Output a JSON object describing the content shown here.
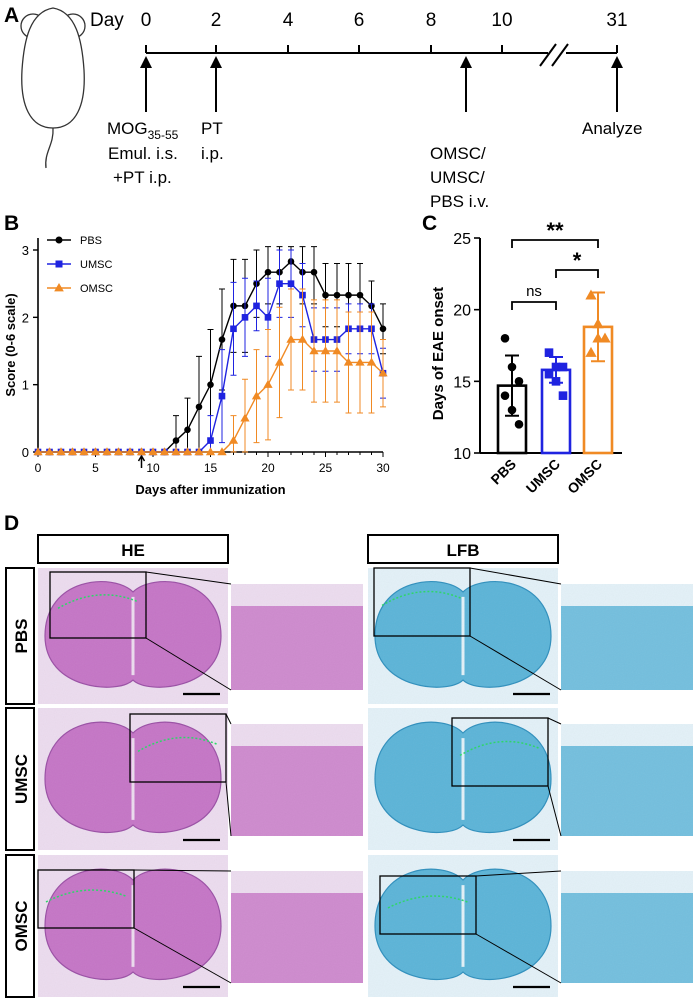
{
  "panel_labels": {
    "a": "A",
    "b": "B",
    "c": "C",
    "d": "D"
  },
  "timeline": {
    "day_label": "Day",
    "days": [
      "0",
      "2",
      "4",
      "6",
      "8",
      "10",
      "31"
    ],
    "events": {
      "mog_prefix": "MOG",
      "mog_subscript": "35-55",
      "mog_line2": "Emul. i.s.",
      "mog_line3": "+PT i.p.",
      "pt_line1": "PT",
      "pt_line2": "i.p.",
      "omsc_line1": "OMSC/",
      "omsc_line2": "UMSC/",
      "omsc_line3": "PBS i.v.",
      "analyze": "Analyze"
    }
  },
  "chart_data": [
    {
      "type": "line",
      "title": "",
      "xlabel": "Days after immunization",
      "ylabel": "Score (0-6 scale)",
      "xlim": [
        0,
        30
      ],
      "ylim": [
        0,
        3
      ],
      "x_ticks": [
        "0",
        "5",
        "10",
        "15",
        "20",
        "25",
        "30"
      ],
      "y_ticks": [
        "0",
        "1",
        "2",
        "3"
      ],
      "x": [
        0,
        1,
        2,
        3,
        4,
        5,
        6,
        7,
        8,
        9,
        10,
        11,
        12,
        13,
        14,
        15,
        16,
        17,
        18,
        19,
        20,
        21,
        22,
        23,
        24,
        25,
        26,
        27,
        28,
        29,
        30
      ],
      "arrow_day": 9,
      "series": [
        {
          "name": "PBS",
          "color": "#000000",
          "marker": "circle",
          "values": [
            0,
            0,
            0,
            0,
            0,
            0,
            0,
            0,
            0,
            0,
            0,
            0,
            0.17,
            0.33,
            0.67,
            1.0,
            1.67,
            2.17,
            2.17,
            2.5,
            2.67,
            2.67,
            2.83,
            2.67,
            2.67,
            2.33,
            2.33,
            2.33,
            2.33,
            2.17,
            1.83
          ],
          "errors": [
            0,
            0,
            0,
            0,
            0,
            0,
            0,
            0,
            0,
            0,
            0,
            0,
            0.37,
            0.47,
            0.75,
            0.82,
            0.75,
            0.69,
            0.69,
            0.5,
            0.47,
            0.47,
            0.37,
            0.47,
            0.47,
            0.47,
            0.47,
            0.47,
            0.47,
            0.37,
            0.37
          ]
        },
        {
          "name": "UMSC",
          "color": "#1f23e0",
          "marker": "square",
          "values": [
            0,
            0,
            0,
            0,
            0,
            0,
            0,
            0,
            0,
            0,
            0,
            0,
            0,
            0,
            0,
            0.17,
            0.83,
            1.83,
            2.0,
            2.17,
            2.0,
            2.5,
            2.5,
            2.33,
            1.67,
            1.67,
            1.67,
            1.83,
            1.83,
            1.83,
            1.17
          ],
          "errors": [
            0,
            0,
            0,
            0,
            0,
            0,
            0,
            0,
            0,
            0,
            0,
            0,
            0,
            0,
            0,
            0.37,
            0.69,
            0.69,
            0.58,
            0.37,
            0.58,
            0.5,
            0.5,
            0.47,
            0.47,
            0.47,
            0.47,
            0.37,
            0.37,
            0.37,
            0.37
          ]
        },
        {
          "name": "OMSC",
          "color": "#f08a24",
          "marker": "triangle",
          "values": [
            0,
            0,
            0,
            0,
            0,
            0,
            0,
            0,
            0,
            0,
            0,
            0,
            0,
            0,
            0,
            0,
            0,
            0.17,
            0.5,
            0.83,
            1.0,
            1.33,
            1.67,
            1.67,
            1.5,
            1.5,
            1.5,
            1.33,
            1.33,
            1.33,
            1.17
          ],
          "errors": [
            0,
            0,
            0,
            0,
            0,
            0,
            0,
            0,
            0,
            0,
            0,
            0,
            0,
            0,
            0,
            0,
            0,
            0.37,
            0.58,
            0.69,
            0.82,
            0.82,
            0.75,
            0.75,
            0.76,
            0.76,
            0.76,
            0.75,
            0.75,
            0.75,
            0.5
          ]
        }
      ],
      "legend": "top-left"
    },
    {
      "type": "bar",
      "title": "",
      "xlabel": "",
      "ylabel": "Days of EAE onset",
      "ylim": [
        10,
        25
      ],
      "y_ticks": [
        "10",
        "15",
        "20",
        "25"
      ],
      "categories": [
        "PBS",
        "UMSC",
        "OMSC"
      ],
      "colors": [
        "#000000",
        "#1f23e0",
        "#f08a24"
      ],
      "markers": [
        "circle",
        "square",
        "triangle"
      ],
      "means": [
        14.7,
        15.8,
        18.8
      ],
      "sd": [
        2.1,
        0.9,
        2.4
      ],
      "points": [
        [
          18,
          16,
          15,
          14,
          13,
          12
        ],
        [
          17,
          16,
          16,
          15.5,
          15,
          14
        ],
        [
          21,
          19,
          18,
          17,
          18
        ]
      ],
      "significance": [
        {
          "from": "PBS",
          "to": "UMSC",
          "label": "ns"
        },
        {
          "from": "UMSC",
          "to": "OMSC",
          "label": "*"
        },
        {
          "from": "PBS",
          "to": "OMSC",
          "label": "**"
        }
      ]
    }
  ],
  "histology": {
    "stains": [
      "HE",
      "LFB"
    ],
    "groups": [
      "PBS",
      "UMSC",
      "OMSC"
    ],
    "colors": {
      "he_fill": "#c575c6",
      "he_dark": "#9a4fa5",
      "he_bg": "#ecdcef",
      "lfb_fill": "#5bb4d8",
      "lfb_dark": "#2e8fbd",
      "lfb_bg": "#e3f1f8",
      "lesion": "#2fd66a"
    }
  }
}
